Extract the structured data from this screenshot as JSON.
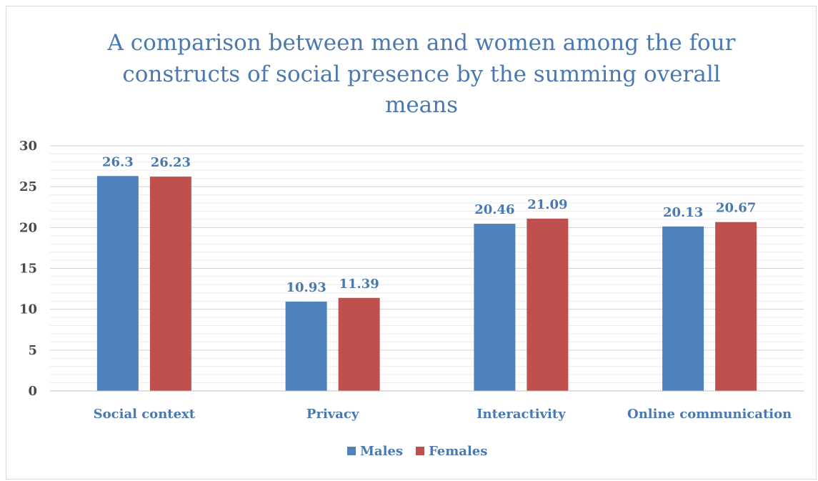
{
  "chart_data": {
    "type": "bar",
    "title_lines": [
      "A comparison between men and women among the four",
      "constructs of social presence by the summing overall",
      "means"
    ],
    "categories": [
      "Social context",
      "Privacy",
      "Interactivity",
      "Online communication"
    ],
    "series": [
      {
        "name": "Males",
        "values": [
          26.3,
          10.93,
          20.46,
          20.13
        ],
        "labels": [
          "26.3",
          "10.93",
          "20.46",
          "20.13"
        ],
        "color": "#4f81bd"
      },
      {
        "name": "Females",
        "values": [
          26.23,
          11.39,
          21.09,
          20.67
        ],
        "labels": [
          "26.23",
          "11.39",
          "21.09",
          "20.67"
        ],
        "color": "#c0504d"
      }
    ],
    "ylim": [
      0,
      30
    ],
    "yticks": [
      "0",
      "5",
      "10",
      "15",
      "20",
      "25",
      "30"
    ],
    "grid": true,
    "legend": "bottom",
    "xlabel": "",
    "ylabel": ""
  }
}
